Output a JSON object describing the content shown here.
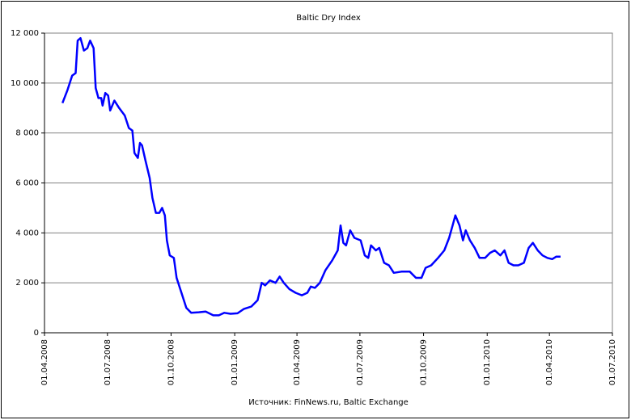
{
  "chart_data": {
    "type": "line",
    "title": "Baltic Dry Index",
    "source": "Источник: FinNews.ru, Baltic Exchange",
    "x": [
      "2008-04-27",
      "2008-05-04",
      "2008-05-11",
      "2008-05-16",
      "2008-05-19",
      "2008-05-23",
      "2008-05-28",
      "2008-06-02",
      "2008-06-06",
      "2008-06-11",
      "2008-06-14",
      "2008-06-18",
      "2008-06-22",
      "2008-06-24",
      "2008-06-28",
      "2008-07-02",
      "2008-07-05",
      "2008-07-11",
      "2008-07-18",
      "2008-07-26",
      "2008-08-01",
      "2008-08-06",
      "2008-08-09",
      "2008-08-14",
      "2008-08-17",
      "2008-08-20",
      "2008-08-25",
      "2008-08-31",
      "2008-09-04",
      "2008-09-09",
      "2008-09-14",
      "2008-09-18",
      "2008-09-22",
      "2008-09-25",
      "2008-09-29",
      "2008-10-05",
      "2008-10-09",
      "2008-10-16",
      "2008-10-23",
      "2008-10-30",
      "2008-11-10",
      "2008-11-20",
      "2008-12-01",
      "2008-12-09",
      "2008-12-17",
      "2008-12-26",
      "2009-01-05",
      "2009-01-14",
      "2009-01-25",
      "2009-02-03",
      "2009-02-09",
      "2009-02-14",
      "2009-02-21",
      "2009-03-01",
      "2009-03-07",
      "2009-03-13",
      "2009-03-21",
      "2009-03-30",
      "2009-04-08",
      "2009-04-16",
      "2009-04-21",
      "2009-04-27",
      "2009-05-04",
      "2009-05-12",
      "2009-05-22",
      "2009-05-30",
      "2009-06-03",
      "2009-06-07",
      "2009-06-11",
      "2009-06-17",
      "2009-06-23",
      "2009-07-02",
      "2009-07-08",
      "2009-07-13",
      "2009-07-17",
      "2009-07-24",
      "2009-07-29",
      "2009-08-05",
      "2009-08-12",
      "2009-08-19",
      "2009-08-30",
      "2009-09-11",
      "2009-09-20",
      "2009-09-28",
      "2009-10-04",
      "2009-10-12",
      "2009-10-22",
      "2009-10-31",
      "2009-11-07",
      "2009-11-12",
      "2009-11-16",
      "2009-11-22",
      "2009-11-27",
      "2009-12-01",
      "2009-12-07",
      "2009-12-14",
      "2009-12-21",
      "2009-12-29",
      "2010-01-05",
      "2010-01-12",
      "2010-01-20",
      "2010-01-26",
      "2010-02-01",
      "2010-02-08",
      "2010-02-15",
      "2010-02-23",
      "2010-03-02",
      "2010-03-08",
      "2010-03-15",
      "2010-03-22",
      "2010-03-29",
      "2010-04-05",
      "2010-04-11",
      "2010-04-17"
    ],
    "series": [
      {
        "name": "Baltic Dry Index",
        "color": "#0000ff",
        "values": [
          9200,
          9700,
          10300,
          10400,
          11700,
          11800,
          11300,
          11400,
          11700,
          11400,
          9800,
          9400,
          9400,
          9100,
          9600,
          9500,
          8900,
          9300,
          9000,
          8700,
          8200,
          8100,
          7200,
          7000,
          7600,
          7500,
          6900,
          6200,
          5400,
          4800,
          4800,
          5000,
          4700,
          3700,
          3100,
          3000,
          2200,
          1600,
          1000,
          800,
          820,
          850,
          700,
          700,
          800,
          760,
          780,
          950,
          1050,
          1300,
          2000,
          1900,
          2100,
          2000,
          2250,
          2000,
          1750,
          1600,
          1500,
          1600,
          1850,
          1800,
          2000,
          2500,
          2900,
          3300,
          4300,
          3600,
          3500,
          4100,
          3800,
          3700,
          3100,
          3000,
          3500,
          3300,
          3400,
          2800,
          2700,
          2400,
          2450,
          2450,
          2200,
          2200,
          2600,
          2700,
          3000,
          3300,
          3800,
          4300,
          4700,
          4300,
          3700,
          4100,
          3700,
          3400,
          3000,
          3000,
          3200,
          3300,
          3100,
          3300,
          2800,
          2700,
          2700,
          2800,
          3400,
          3600,
          3300,
          3100,
          3000,
          2950,
          3050,
          3050
        ]
      }
    ],
    "xlim": [
      "2008-04-01",
      "2010-07-01"
    ],
    "xticks": [
      {
        "value": "2008-04-01",
        "label": "01.04.2008"
      },
      {
        "value": "2008-07-01",
        "label": "01.07.2008"
      },
      {
        "value": "2008-10-01",
        "label": "01.10.2008"
      },
      {
        "value": "2009-01-01",
        "label": "01.01.2009"
      },
      {
        "value": "2009-04-01",
        "label": "01.04.2009"
      },
      {
        "value": "2009-07-01",
        "label": "01.07.2009"
      },
      {
        "value": "2009-10-01",
        "label": "01.10.2009"
      },
      {
        "value": "2010-01-01",
        "label": "01.01.2010"
      },
      {
        "value": "2010-04-01",
        "label": "01.04.2010"
      },
      {
        "value": "2010-07-01",
        "label": "01.07.2010"
      }
    ],
    "ylim": [
      0,
      12000
    ],
    "yticks": [
      0,
      {
        "value": 2000,
        "label": "2 000"
      },
      {
        "value": 4000,
        "label": "4 000"
      },
      {
        "value": 6000,
        "label": "6 000"
      },
      {
        "value": 8000,
        "label": "8 000"
      },
      {
        "value": 10000,
        "label": "10 000"
      },
      {
        "value": 12000,
        "label": "12 000"
      }
    ],
    "grid": true
  }
}
